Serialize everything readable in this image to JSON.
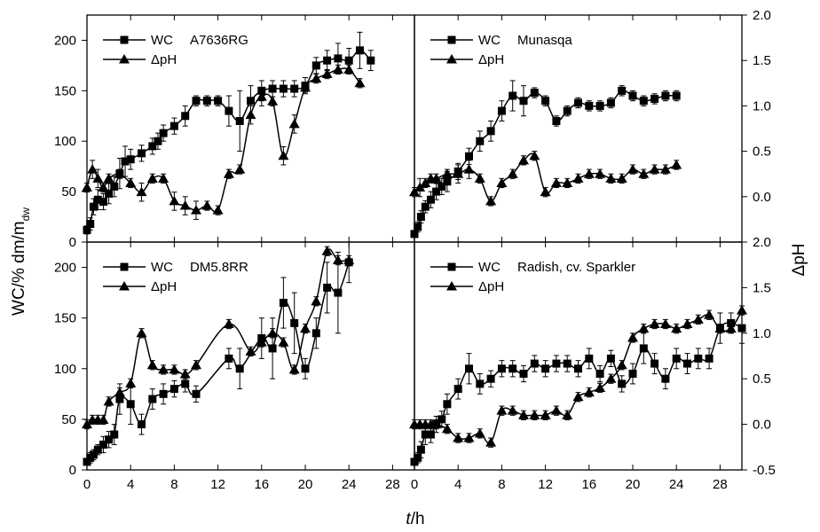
{
  "axes": {
    "xlabel_italic": "t",
    "xlabel_rest": "/h",
    "ylabel_left": "WC/% dm/m",
    "ylabel_left_sub": "dw",
    "ylabel_right": "ΔpH",
    "x_ticks": [
      "0",
      "4",
      "8",
      "12",
      "16",
      "20",
      "24",
      "28"
    ],
    "wc_ticks": [
      "0",
      "50",
      "100",
      "150",
      "200"
    ],
    "ph_ticks": [
      "2.0",
      "1.5",
      "1.0",
      "0.5",
      "0.0",
      "-0.5"
    ]
  },
  "chart_data": [
    {
      "type": "line",
      "title": "A7636RG",
      "xlim": [
        0,
        30
      ],
      "ylim_wc": [
        0,
        225
      ],
      "ylim_ph": [
        -0.5,
        2.0
      ],
      "series": [
        {
          "name": "WC",
          "marker": "square",
          "axis": "wc",
          "x": [
            0,
            0.3,
            0.6,
            1,
            1.5,
            2,
            2.5,
            3,
            3.5,
            4,
            5,
            6,
            6.5,
            7,
            8,
            9,
            10,
            11,
            12,
            13,
            14,
            15,
            16,
            17,
            18,
            19,
            20,
            21,
            22,
            23,
            24,
            25,
            26
          ],
          "y": [
            12,
            18,
            35,
            42,
            40,
            48,
            55,
            68,
            80,
            82,
            88,
            95,
            100,
            108,
            115,
            125,
            140,
            140,
            140,
            130,
            120,
            140,
            150,
            152,
            152,
            152,
            155,
            175,
            180,
            182,
            180,
            190,
            180
          ],
          "err": [
            4,
            6,
            8,
            10,
            8,
            10,
            10,
            15,
            15,
            10,
            8,
            8,
            8,
            8,
            8,
            10,
            5,
            5,
            5,
            15,
            30,
            15,
            10,
            8,
            8,
            8,
            8,
            8,
            10,
            15,
            12,
            18,
            10
          ]
        },
        {
          "name": "ΔpH",
          "marker": "triangle",
          "axis": "ph",
          "x": [
            0,
            0.5,
            1,
            1.5,
            2,
            3,
            4,
            5,
            6,
            7,
            8,
            9,
            10,
            11,
            12,
            13,
            14,
            15,
            16,
            17,
            18,
            19,
            20,
            21,
            22,
            23,
            24,
            25
          ],
          "y": [
            0.1,
            0.3,
            0.2,
            0.1,
            0.2,
            0.25,
            0.15,
            0.05,
            0.2,
            0.2,
            -0.05,
            -0.1,
            -0.15,
            -0.1,
            -0.15,
            0.25,
            0.3,
            0.9,
            1.1,
            1.05,
            0.45,
            0.8,
            1.2,
            1.3,
            1.35,
            1.4,
            1.4,
            1.25
          ],
          "err": [
            0.05,
            0.1,
            0.1,
            0.05,
            0.05,
            0.05,
            0.05,
            0.1,
            0.05,
            0.05,
            0.1,
            0.1,
            0.1,
            0.05,
            0.05,
            0.05,
            0.05,
            0.1,
            0.1,
            0.05,
            0.1,
            0.1,
            0.05,
            0.05,
            0.05,
            0.05,
            0.05,
            0.05
          ]
        }
      ]
    },
    {
      "type": "line",
      "title": "Munasqa",
      "xlim": [
        0,
        30
      ],
      "ylim_wc": [
        0,
        225
      ],
      "ylim_ph": [
        -0.5,
        2.0
      ],
      "series": [
        {
          "name": "WC",
          "marker": "square",
          "axis": "wc",
          "x": [
            0,
            0.3,
            0.6,
            1,
            1.5,
            2,
            2.5,
            3,
            4,
            5,
            6,
            7,
            8,
            9,
            10,
            11,
            12,
            13,
            14,
            15,
            16,
            17,
            18,
            19,
            20,
            21,
            22,
            23,
            24
          ],
          "y": [
            8,
            15,
            25,
            35,
            42,
            50,
            55,
            60,
            70,
            85,
            100,
            110,
            130,
            145,
            140,
            148,
            140,
            120,
            130,
            138,
            135,
            135,
            138,
            150,
            145,
            140,
            142,
            145,
            145
          ],
          "err": [
            3,
            5,
            6,
            6,
            8,
            8,
            8,
            10,
            8,
            8,
            10,
            10,
            10,
            15,
            15,
            5,
            5,
            5,
            5,
            5,
            5,
            5,
            5,
            5,
            5,
            5,
            5,
            5,
            5
          ]
        },
        {
          "name": "ΔpH",
          "marker": "triangle",
          "axis": "ph",
          "x": [
            0,
            0.5,
            1,
            1.5,
            2,
            3,
            4,
            5,
            6,
            7,
            8,
            9,
            10,
            11,
            12,
            13,
            14,
            15,
            16,
            17,
            18,
            19,
            20,
            21,
            22,
            23,
            24
          ],
          "y": [
            0.05,
            0.1,
            0.15,
            0.2,
            0.2,
            0.25,
            0.25,
            0.3,
            0.2,
            -0.05,
            0.15,
            0.25,
            0.4,
            0.45,
            0.05,
            0.15,
            0.15,
            0.2,
            0.25,
            0.25,
            0.2,
            0.2,
            0.3,
            0.25,
            0.3,
            0.3,
            0.35
          ],
          "err": [
            0.05,
            0.1,
            0.05,
            0.05,
            0.05,
            0.05,
            0.1,
            0.1,
            0.05,
            0.05,
            0.05,
            0.05,
            0.05,
            0.05,
            0.05,
            0.05,
            0.05,
            0.05,
            0.05,
            0.05,
            0.05,
            0.05,
            0.05,
            0.05,
            0.05,
            0.05,
            0.05
          ]
        }
      ]
    },
    {
      "type": "line",
      "title": "DM5.8RR",
      "xlim": [
        0,
        30
      ],
      "ylim_wc": [
        0,
        225
      ],
      "ylim_ph": [
        -0.5,
        2.0
      ],
      "series": [
        {
          "name": "WC",
          "marker": "square",
          "axis": "wc",
          "x": [
            0,
            0.3,
            0.6,
            1,
            1.5,
            2,
            2.5,
            3,
            4,
            5,
            6,
            7,
            8,
            9,
            10,
            13,
            14,
            16,
            17,
            18,
            19,
            20,
            21,
            22,
            23,
            24
          ],
          "y": [
            8,
            12,
            15,
            20,
            25,
            30,
            35,
            70,
            65,
            45,
            70,
            75,
            80,
            85,
            75,
            110,
            100,
            130,
            120,
            165,
            145,
            100,
            135,
            180,
            175,
            205
          ],
          "err": [
            3,
            5,
            5,
            5,
            8,
            8,
            10,
            15,
            20,
            10,
            10,
            10,
            8,
            8,
            8,
            10,
            20,
            20,
            30,
            25,
            30,
            10,
            15,
            25,
            40,
            20
          ]
        },
        {
          "name": "ΔpH",
          "marker": "triangle",
          "axis": "ph",
          "x": [
            0,
            0.5,
            1,
            1.5,
            2,
            3,
            4,
            5,
            6,
            7,
            8,
            9,
            10,
            13,
            15,
            16,
            17,
            18,
            19,
            20,
            21,
            22,
            23,
            24
          ],
          "y": [
            0,
            0.05,
            0.05,
            0.05,
            0.25,
            0.35,
            0.45,
            1.0,
            0.65,
            0.6,
            0.6,
            0.55,
            0.65,
            1.1,
            0.8,
            0.9,
            1.0,
            0.9,
            0.6,
            1.05,
            1.35,
            1.9,
            1.8,
            1.8
          ],
          "err": [
            0.05,
            0.05,
            0.05,
            0.05,
            0.05,
            0.05,
            0.05,
            0.05,
            0.05,
            0.05,
            0.05,
            0.05,
            0.05,
            0.05,
            0.05,
            0.05,
            0.05,
            0.05,
            0.05,
            0.05,
            0.05,
            0.05,
            0.05,
            0.05
          ]
        }
      ]
    },
    {
      "type": "line",
      "title": "Radish, cv. Sparkler",
      "xlim": [
        0,
        30
      ],
      "ylim_wc": [
        0,
        225
      ],
      "ylim_ph": [
        -0.5,
        2.0
      ],
      "series": [
        {
          "name": "WC",
          "marker": "square",
          "axis": "wc",
          "x": [
            0,
            0.3,
            0.6,
            1,
            1.5,
            2,
            2.5,
            3,
            4,
            5,
            6,
            7,
            8,
            9,
            10,
            11,
            12,
            13,
            14,
            15,
            16,
            17,
            18,
            19,
            20,
            21,
            22,
            23,
            24,
            25,
            26,
            27,
            28,
            29,
            30
          ],
          "y": [
            8,
            12,
            20,
            35,
            35,
            45,
            50,
            65,
            80,
            100,
            85,
            90,
            100,
            100,
            95,
            105,
            100,
            105,
            105,
            100,
            110,
            95,
            110,
            85,
            95,
            120,
            105,
            90,
            110,
            105,
            110,
            110,
            140,
            145,
            140
          ],
          "err": [
            3,
            5,
            8,
            10,
            8,
            8,
            8,
            10,
            10,
            15,
            10,
            8,
            8,
            8,
            8,
            8,
            8,
            8,
            8,
            8,
            10,
            8,
            8,
            8,
            10,
            15,
            10,
            10,
            10,
            10,
            10,
            10,
            15,
            10,
            15
          ]
        },
        {
          "name": "ΔpH",
          "marker": "triangle",
          "axis": "ph",
          "x": [
            0,
            0.5,
            1,
            1.5,
            2,
            3,
            4,
            5,
            6,
            7,
            8,
            9,
            10,
            11,
            12,
            13,
            14,
            15,
            16,
            17,
            18,
            19,
            20,
            21,
            22,
            23,
            24,
            25,
            26,
            27,
            28,
            29,
            30
          ],
          "y": [
            0,
            0,
            0,
            0,
            0,
            -0.05,
            -0.15,
            -0.15,
            -0.1,
            -0.2,
            0.15,
            0.15,
            0.1,
            0.1,
            0.1,
            0.15,
            0.1,
            0.3,
            0.35,
            0.4,
            0.5,
            0.65,
            0.95,
            1.05,
            1.1,
            1.1,
            1.05,
            1.1,
            1.15,
            1.2,
            1.05,
            1.05,
            1.25
          ],
          "err": [
            0.05,
            0.05,
            0.05,
            0.05,
            0.05,
            0.05,
            0.05,
            0.05,
            0.05,
            0.05,
            0.05,
            0.05,
            0.05,
            0.05,
            0.05,
            0.05,
            0.05,
            0.05,
            0.05,
            0.05,
            0.05,
            0.05,
            0.05,
            0.05,
            0.05,
            0.05,
            0.05,
            0.05,
            0.05,
            0.05,
            0.05,
            0.05,
            0.05
          ]
        }
      ]
    }
  ]
}
